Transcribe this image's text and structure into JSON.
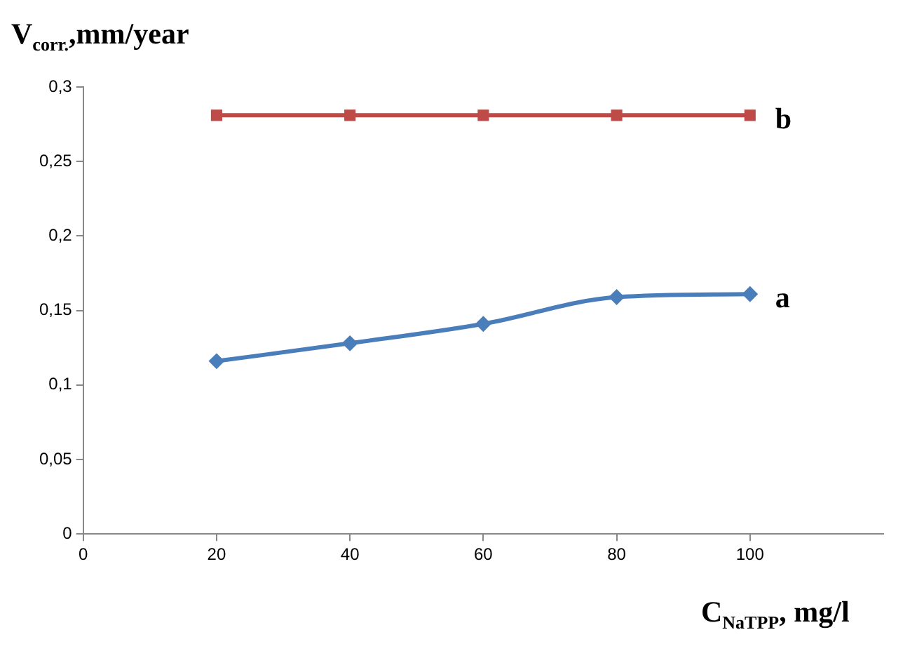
{
  "chart_data": {
    "type": "line",
    "xlabel": "C$_{NaTPP}$, mg/l",
    "ylabel": "V$_{corr.}$,mm/year",
    "x": [
      20,
      40,
      60,
      80,
      100
    ],
    "series": [
      {
        "name": "a",
        "color": "#4a7ebb",
        "marker": "diamond",
        "values": [
          0.116,
          0.128,
          0.141,
          0.159,
          0.161
        ]
      },
      {
        "name": "b",
        "color": "#be4b48",
        "marker": "square",
        "values": [
          0.281,
          0.281,
          0.281,
          0.281,
          0.281
        ]
      }
    ],
    "xlim": [
      0,
      120
    ],
    "xticks": [
      0,
      20,
      40,
      60,
      80,
      100
    ],
    "ylim": [
      0,
      0.3
    ],
    "yticks": [
      0,
      {
        "value": 0.05,
        "label": "0,05"
      },
      {
        "value": 0.1,
        "label": "0,1"
      },
      {
        "value": 0.15,
        "label": "0,15"
      },
      {
        "value": 0.2,
        "label": "0,2"
      },
      {
        "value": 0.25,
        "label": "0,25"
      },
      {
        "value": 0.3,
        "label": "0,3"
      }
    ],
    "grid": false,
    "legend": false
  }
}
